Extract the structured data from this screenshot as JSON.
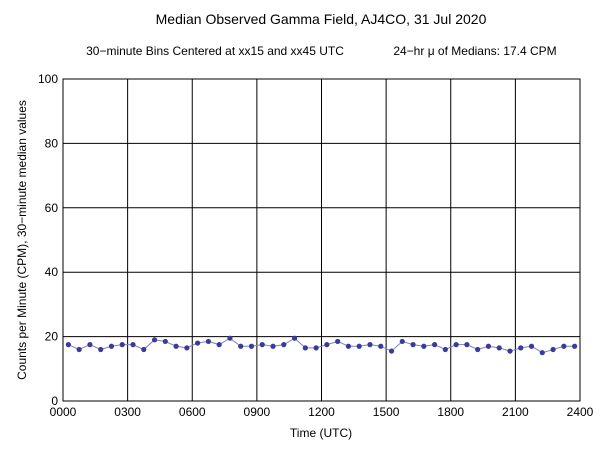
{
  "chart_data": {
    "type": "line",
    "title": "Median Observed Gamma Field, AJ4CO, 31 Jul 2020",
    "subtitle_left": "30−minute Bins Centered at xx15 and xx45 UTC",
    "subtitle_right": "24−hr μ of Medians: 17.4 CPM",
    "xlabel": "Time (UTC)",
    "ylabel": "Counts per Minute (CPM), 30−minute median values",
    "xlim": [
      0,
      24
    ],
    "ylim": [
      0,
      100
    ],
    "grid": true,
    "x_ticks": [
      {
        "value": 0,
        "label": "0000"
      },
      {
        "value": 3,
        "label": "0300"
      },
      {
        "value": 6,
        "label": "0600"
      },
      {
        "value": 9,
        "label": "0900"
      },
      {
        "value": 12,
        "label": "1200"
      },
      {
        "value": 15,
        "label": "1500"
      },
      {
        "value": 18,
        "label": "1800"
      },
      {
        "value": 21,
        "label": "2100"
      },
      {
        "value": 24,
        "label": "2400"
      }
    ],
    "y_ticks": [
      {
        "value": 0,
        "label": "0"
      },
      {
        "value": 20,
        "label": "20"
      },
      {
        "value": 40,
        "label": "40"
      },
      {
        "value": 60,
        "label": "60"
      },
      {
        "value": 80,
        "label": "80"
      },
      {
        "value": 100,
        "label": "100"
      }
    ],
    "series": [
      {
        "color": "#3a3a9a",
        "x": [
          0.25,
          0.75,
          1.25,
          1.75,
          2.25,
          2.75,
          3.25,
          3.75,
          4.25,
          4.75,
          5.25,
          5.75,
          6.25,
          6.75,
          7.25,
          7.75,
          8.25,
          8.75,
          9.25,
          9.75,
          10.25,
          10.75,
          11.25,
          11.75,
          12.25,
          12.75,
          13.25,
          13.75,
          14.25,
          14.75,
          15.25,
          15.75,
          16.25,
          16.75,
          17.25,
          17.75,
          18.25,
          18.75,
          19.25,
          19.75,
          20.25,
          20.75,
          21.25,
          21.75,
          22.25,
          22.75,
          23.25,
          23.75
        ],
        "values": [
          17.5,
          16,
          17.5,
          16,
          17,
          17.5,
          17.5,
          16,
          19,
          18.5,
          17,
          16.5,
          18,
          18.5,
          17.5,
          19.5,
          17,
          17,
          17.5,
          17,
          17.5,
          19.5,
          16.5,
          16.5,
          17.5,
          18.5,
          17,
          17,
          17.5,
          17,
          15.5,
          18.5,
          17.5,
          17,
          17.5,
          16,
          17.5,
          17.5,
          16,
          17,
          16.5,
          15.5,
          16.5,
          17,
          15,
          16,
          17,
          17
        ]
      }
    ]
  }
}
